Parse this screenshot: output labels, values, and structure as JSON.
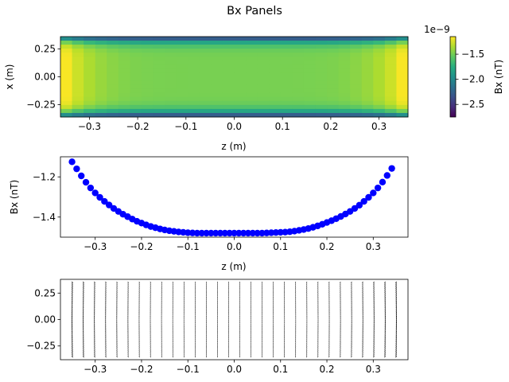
{
  "figure": {
    "title": "Bx Panels"
  },
  "chart_data": [
    {
      "type": "heatmap",
      "xlabel": "z (m)",
      "ylabel": "x (m)",
      "xlim": [
        -0.36,
        0.36
      ],
      "ylim": [
        -0.36,
        0.36
      ],
      "xticks": [
        -0.3,
        -0.2,
        -0.1,
        0.0,
        0.1,
        0.2,
        0.3
      ],
      "xtick_labels": [
        "−0.3",
        "−0.2",
        "−0.1",
        "0.0",
        "0.1",
        "0.2",
        "0.3"
      ],
      "yticks": [
        0.25,
        0.0,
        -0.25
      ],
      "ytick_labels": [
        "0.25",
        "0.00",
        "−0.25"
      ],
      "colormap": "viridis",
      "colorbar": {
        "label": "Bx (nT)",
        "offset_text": "1e−9",
        "range": [
          -2.75,
          -1.15
        ],
        "ticks": [
          -1.5,
          -2.0,
          -2.5
        ],
        "tick_labels": [
          "−1.5",
          "−2.0",
          "−2.5"
        ]
      },
      "grid_shape": [
        20,
        30
      ],
      "value_model": "Bx(x,z) ≈ -1.48 + 0.33·((|z|/0.35)^6) − 1.2·((|x|/0.36)^8) (units 1e-9 T)"
    },
    {
      "type": "scatter",
      "xlabel": "z (m)",
      "ylabel": "Bx (nT)",
      "xlim": [
        -0.375,
        0.375
      ],
      "ylim": [
        -1.5,
        -1.1
      ],
      "xticks": [
        -0.3,
        -0.2,
        -0.1,
        0.0,
        0.1,
        0.2,
        0.3
      ],
      "xtick_labels": [
        "−0.3",
        "−0.2",
        "−0.1",
        "0.0",
        "0.1",
        "0.2",
        "0.3"
      ],
      "yticks": [
        -1.2,
        -1.4
      ],
      "ytick_labels": [
        "−1.2",
        "−1.4"
      ],
      "color": "#0000ff",
      "x": [
        -0.35,
        -0.34,
        -0.33,
        -0.32,
        -0.31,
        -0.3,
        -0.29,
        -0.28,
        -0.27,
        -0.26,
        -0.25,
        -0.24,
        -0.23,
        -0.22,
        -0.21,
        -0.2,
        -0.19,
        -0.18,
        -0.17,
        -0.16,
        -0.15,
        -0.14,
        -0.13,
        -0.12,
        -0.11,
        -0.1,
        -0.09,
        -0.08,
        -0.07,
        -0.06,
        -0.05,
        -0.04,
        -0.03,
        -0.02,
        -0.01,
        0.0,
        0.01,
        0.02,
        0.03,
        0.04,
        0.05,
        0.06,
        0.07,
        0.08,
        0.09,
        0.1,
        0.11,
        0.12,
        0.13,
        0.14,
        0.15,
        0.16,
        0.17,
        0.18,
        0.19,
        0.2,
        0.21,
        0.22,
        0.23,
        0.24,
        0.25,
        0.26,
        0.27,
        0.28,
        0.29,
        0.3,
        0.31,
        0.32,
        0.33,
        0.34
      ],
      "y": [
        -1.125,
        -1.16,
        -1.195,
        -1.227,
        -1.255,
        -1.28,
        -1.302,
        -1.322,
        -1.34,
        -1.357,
        -1.372,
        -1.386,
        -1.398,
        -1.41,
        -1.421,
        -1.43,
        -1.439,
        -1.447,
        -1.453,
        -1.459,
        -1.464,
        -1.468,
        -1.471,
        -1.474,
        -1.476,
        -1.478,
        -1.479,
        -1.48,
        -1.48,
        -1.48,
        -1.48,
        -1.48,
        -1.48,
        -1.48,
        -1.48,
        -1.48,
        -1.48,
        -1.48,
        -1.48,
        -1.48,
        -1.48,
        -1.48,
        -1.479,
        -1.478,
        -1.477,
        -1.476,
        -1.475,
        -1.473,
        -1.47,
        -1.466,
        -1.462,
        -1.457,
        -1.451,
        -1.444,
        -1.436,
        -1.427,
        -1.418,
        -1.408,
        -1.397,
        -1.385,
        -1.372,
        -1.357,
        -1.341,
        -1.322,
        -1.302,
        -1.28,
        -1.255,
        -1.226,
        -1.193,
        -1.158
      ]
    },
    {
      "type": "quiver",
      "xlim": [
        -0.375,
        0.375
      ],
      "ylim": [
        -0.38,
        0.38
      ],
      "xticks": [
        -0.3,
        -0.2,
        -0.1,
        0.0,
        0.1,
        0.2,
        0.3
      ],
      "xtick_labels": [
        "−0.3",
        "−0.2",
        "−0.1",
        "0.0",
        "0.1",
        "0.2",
        "0.3"
      ],
      "yticks": [
        0.25,
        0.0,
        -0.25
      ],
      "ytick_labels": [
        "0.25",
        "0.00",
        "−0.25"
      ],
      "columns_z_range": [
        -0.35,
        0.35
      ],
      "columns_count": 30,
      "rows_x_range": [
        -0.35,
        0.35
      ],
      "rows_count": 40
    }
  ]
}
